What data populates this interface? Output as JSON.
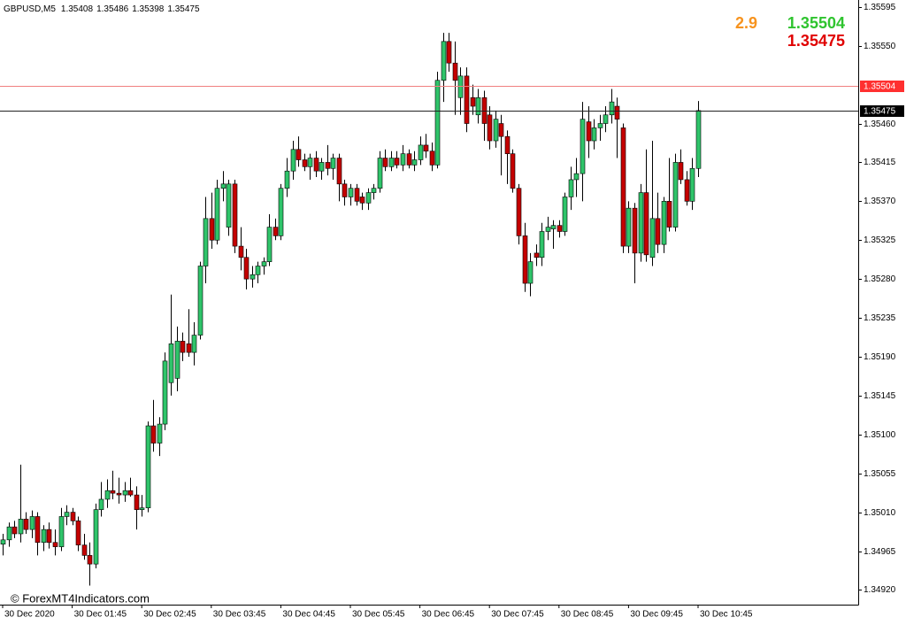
{
  "chart_data": {
    "type": "candlestick",
    "title": "GBPUSD,M5",
    "watermark": "© ForexMT4Indicators.com",
    "spread": 2.9,
    "ask": 1.35504,
    "bid": 1.35475,
    "up_color": "#2fc46a",
    "down_color": "#c40000",
    "ask_color": "#f08080",
    "bid_color": "#222222",
    "ylim": [
      1.34903,
      1.35603
    ],
    "yticks": [
      1.35595,
      {
        "value": 1.3555,
        "label": "1.35550"
      },
      {
        "value": 1.3546,
        "label": "1.35460"
      },
      1.35415,
      {
        "value": 1.3537,
        "label": "1.35370"
      },
      1.35325,
      {
        "value": 1.3528,
        "label": "1.35280"
      },
      1.35235,
      {
        "value": 1.3519,
        "label": "1.35190"
      },
      1.35145,
      {
        "value": 1.351,
        "label": "1.35100"
      },
      1.35055,
      {
        "value": 1.3501,
        "label": "1.35010"
      },
      1.34965,
      {
        "value": 1.3492,
        "label": "1.34920"
      }
    ],
    "categories": [
      "30 Dec 2020",
      null,
      null,
      null,
      null,
      null,
      null,
      null,
      null,
      null,
      null,
      null,
      "30 Dec 01:45",
      null,
      null,
      null,
      null,
      null,
      null,
      null,
      null,
      null,
      null,
      null,
      "30 Dec 02:45",
      null,
      null,
      null,
      null,
      null,
      null,
      null,
      null,
      null,
      null,
      null,
      "30 Dec 03:45",
      null,
      null,
      null,
      null,
      null,
      null,
      null,
      null,
      null,
      null,
      null,
      "30 Dec 04:45",
      null,
      null,
      null,
      null,
      null,
      null,
      null,
      null,
      null,
      null,
      null,
      "30 Dec 05:45",
      null,
      null,
      null,
      null,
      null,
      null,
      null,
      null,
      null,
      null,
      null,
      "30 Dec 06:45",
      null,
      null,
      null,
      null,
      null,
      null,
      null,
      null,
      null,
      null,
      null,
      "30 Dec 07:45",
      null,
      null,
      null,
      null,
      null,
      null,
      null,
      null,
      null,
      null,
      null,
      "30 Dec 08:45",
      null,
      null,
      null,
      null,
      null,
      null,
      null,
      null,
      null,
      null,
      null,
      "30 Dec 09:45",
      null,
      null,
      null,
      null,
      null,
      null,
      null,
      null,
      null,
      null,
      null,
      "30 Dec 10:45"
    ],
    "open": [
      1.34973,
      1.34978,
      1.34993,
      1.34985,
      1.35002,
      1.3499,
      1.35005,
      1.34975,
      1.3499,
      1.34975,
      1.3497,
      1.35005,
      1.3501,
      1.35,
      1.34972,
      1.3496,
      1.3495,
      1.35013,
      1.35025,
      1.35035,
      1.35032,
      1.3503,
      1.35035,
      1.3503,
      1.35013,
      1.35015,
      1.3511,
      1.3509,
      1.35112,
      1.3516,
      1.35165,
      1.35208,
      1.35205,
      1.35195,
      1.35215,
      1.35295,
      1.3535,
      1.35325,
      1.35385,
      1.3534,
      1.3539,
      1.35318,
      1.35305,
      1.3528,
      1.35285,
      1.35295,
      1.353,
      1.3534,
      1.3533,
      1.35385,
      1.35405,
      1.3543,
      1.35418,
      1.3541,
      1.3542,
      1.35405,
      1.35415,
      1.35408,
      1.3542,
      1.3539,
      1.35375,
      1.35385,
      1.35375,
      1.35368,
      1.3538,
      1.35385,
      1.3542,
      1.3541,
      1.3542,
      1.35412,
      1.35425,
      1.35412,
      1.35418,
      1.35435,
      1.35428,
      1.35412,
      1.3551,
      1.35555,
      1.3553,
      1.3549,
      1.35515,
      1.3549,
      1.3547,
      1.3549,
      1.3547,
      1.3544,
      1.3546,
      1.35445,
      1.35425,
      1.35385,
      1.3533,
      1.35275,
      1.3531,
      1.35305,
      1.35335,
      1.35338,
      1.35342,
      1.35335,
      1.35375,
      1.35395,
      1.35402,
      1.35462,
      1.3544,
      1.35455,
      1.3546,
      1.3547,
      1.3548,
      1.35455,
      1.35318,
      1.35362,
      1.3531,
      1.3538,
      1.35305,
      1.3535,
      1.3532,
      1.3537,
      1.3534,
      1.35415,
      1.35395,
      1.3537,
      1.35408
    ],
    "high": [
      1.34985,
      1.34998,
      1.35,
      1.35065,
      1.3501,
      1.35012,
      1.3501,
      1.34995,
      1.34998,
      1.3499,
      1.35015,
      1.35018,
      1.35015,
      1.35005,
      1.34985,
      1.34975,
      1.3502,
      1.35045,
      1.35048,
      1.35058,
      1.3505,
      1.35045,
      1.3505,
      1.3504,
      1.3503,
      1.35115,
      1.3514,
      1.3512,
      1.35195,
      1.35262,
      1.35225,
      1.35218,
      1.35245,
      1.3523,
      1.353,
      1.35375,
      1.3538,
      1.35395,
      1.35405,
      1.35395,
      1.35395,
      1.3534,
      1.35315,
      1.35295,
      1.353,
      1.35305,
      1.35355,
      1.3535,
      1.3539,
      1.3542,
      1.3544,
      1.35445,
      1.35425,
      1.35425,
      1.35428,
      1.3542,
      1.35435,
      1.35425,
      1.35425,
      1.35395,
      1.3539,
      1.3539,
      1.3538,
      1.35385,
      1.3539,
      1.35428,
      1.3543,
      1.35428,
      1.35428,
      1.35435,
      1.3543,
      1.35428,
      1.35445,
      1.35448,
      1.35438,
      1.3552,
      1.35565,
      1.35565,
      1.35555,
      1.35525,
      1.35525,
      1.35505,
      1.355,
      1.35498,
      1.3548,
      1.35475,
      1.3547,
      1.35452,
      1.3543,
      1.3539,
      1.35345,
      1.3531,
      1.3532,
      1.35345,
      1.35352,
      1.35348,
      1.35348,
      1.3538,
      1.3541,
      1.3542,
      1.35485,
      1.3548,
      1.35465,
      1.3547,
      1.3548,
      1.355,
      1.3549,
      1.3546,
      1.3537,
      1.35368,
      1.3539,
      1.3543,
      1.3544,
      1.3538,
      1.35375,
      1.3542,
      1.35425,
      1.3543,
      1.35405,
      1.3542,
      1.35486
    ],
    "low": [
      1.3496,
      1.3497,
      1.3498,
      1.34975,
      1.34985,
      1.3498,
      1.3496,
      1.34965,
      1.34968,
      1.3496,
      1.34965,
      1.34995,
      1.34995,
      1.34965,
      1.34955,
      1.34925,
      1.34945,
      1.35005,
      1.35015,
      1.35025,
      1.3502,
      1.35022,
      1.35028,
      1.3499,
      1.35005,
      1.3501,
      1.3508,
      1.35075,
      1.35105,
      1.35145,
      1.3515,
      1.35185,
      1.3519,
      1.3518,
      1.3521,
      1.35275,
      1.35315,
      1.3532,
      1.3537,
      1.3533,
      1.3531,
      1.3529,
      1.35268,
      1.3527,
      1.35275,
      1.35285,
      1.35295,
      1.35325,
      1.35325,
      1.35375,
      1.35395,
      1.3541,
      1.35405,
      1.35395,
      1.35398,
      1.35395,
      1.354,
      1.35395,
      1.3537,
      1.35365,
      1.35365,
      1.35365,
      1.3536,
      1.3536,
      1.35372,
      1.3538,
      1.35405,
      1.35405,
      1.35408,
      1.35405,
      1.35408,
      1.35405,
      1.35412,
      1.3542,
      1.35405,
      1.35408,
      1.35485,
      1.3552,
      1.3547,
      1.3547,
      1.3545,
      1.3547,
      1.3546,
      1.3544,
      1.3543,
      1.35432,
      1.354,
      1.3539,
      1.3538,
      1.3532,
      1.35265,
      1.3526,
      1.35295,
      1.35295,
      1.35325,
      1.35315,
      1.35328,
      1.3533,
      1.3536,
      1.35375,
      1.3537,
      1.3542,
      1.3543,
      1.3544,
      1.3545,
      1.3546,
      1.3542,
      1.3531,
      1.3531,
      1.35275,
      1.353,
      1.353,
      1.35295,
      1.3531,
      1.3531,
      1.35335,
      1.35335,
      1.3539,
      1.35365,
      1.3536,
      1.35398
    ],
    "close": [
      1.34978,
      1.34993,
      1.34985,
      1.35002,
      1.3499,
      1.35005,
      1.34975,
      1.3499,
      1.34975,
      1.3497,
      1.35005,
      1.3501,
      1.35,
      1.34972,
      1.3496,
      1.3495,
      1.35013,
      1.35025,
      1.35035,
      1.35032,
      1.3503,
      1.35035,
      1.3503,
      1.35013,
      1.35015,
      1.3511,
      1.3509,
      1.35112,
      1.35185,
      1.35205,
      1.35208,
      1.35195,
      1.35195,
      1.35215,
      1.35295,
      1.3535,
      1.35325,
      1.35385,
      1.3539,
      1.3539,
      1.35318,
      1.35305,
      1.3528,
      1.35285,
      1.35295,
      1.353,
      1.3534,
      1.3533,
      1.35385,
      1.35405,
      1.3543,
      1.35418,
      1.3541,
      1.3542,
      1.35405,
      1.35415,
      1.35408,
      1.3542,
      1.3539,
      1.35375,
      1.35385,
      1.3537,
      1.35368,
      1.3538,
      1.35385,
      1.3542,
      1.3541,
      1.3542,
      1.35412,
      1.35425,
      1.35412,
      1.35418,
      1.35435,
      1.35428,
      1.35412,
      1.3551,
      1.35555,
      1.3553,
      1.3551,
      1.35515,
      1.3546,
      1.3548,
      1.3549,
      1.3546,
      1.3544,
      1.35465,
      1.35445,
      1.35425,
      1.35385,
      1.3533,
      1.35275,
      1.353,
      1.35305,
      1.35335,
      1.3534,
      1.35342,
      1.35335,
      1.35375,
      1.35395,
      1.35402,
      1.35465,
      1.3544,
      1.35455,
      1.3546,
      1.3547,
      1.35485,
      1.35465,
      1.35318,
      1.35362,
      1.3531,
      1.3538,
      1.35308,
      1.3535,
      1.3532,
      1.3537,
      1.3534,
      1.35415,
      1.35395,
      1.3537,
      1.35408,
      1.35475
    ]
  }
}
